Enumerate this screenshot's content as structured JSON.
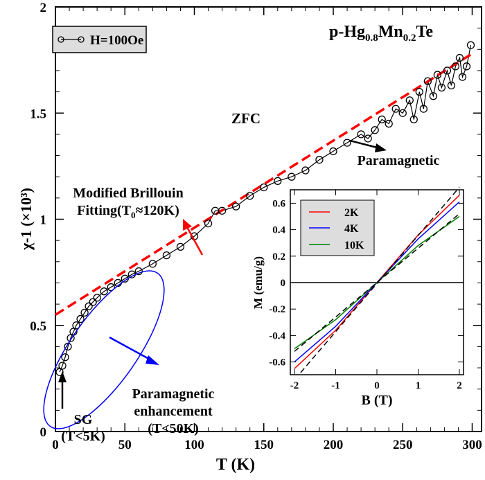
{
  "chart_data": [
    {
      "type": "scatter",
      "title": "p-Hg0.8Mn0.2Te",
      "xlabel": "T (K)",
      "ylabel": "χ-1 (×10³)",
      "xlim": [
        0,
        307
      ],
      "ylim": [
        0,
        2
      ],
      "xticks": [
        "0",
        "50",
        "100",
        "150",
        "200",
        "250",
        "300"
      ],
      "yticks": [
        "0",
        "0.5",
        "1",
        "1.5",
        "2"
      ],
      "legend": {
        "placement": "top-left",
        "entries": [
          "H=100Oe"
        ]
      },
      "series": [
        {
          "name": "H=100Oe",
          "style": "line+open-circles",
          "color": "#000000",
          "x": [
            3,
            5,
            7,
            9,
            11,
            13,
            15,
            18,
            21,
            24,
            27,
            30,
            35,
            40,
            45,
            50,
            55,
            60,
            70,
            80,
            90,
            100,
            110,
            115,
            120,
            130,
            140,
            150,
            160,
            170,
            180,
            190,
            200,
            210,
            220,
            225,
            230,
            235,
            240,
            245,
            250,
            255,
            258,
            262,
            265,
            268,
            272,
            275,
            278,
            282,
            285,
            288,
            291,
            293,
            296,
            299
          ],
          "y": [
            0.28,
            0.31,
            0.35,
            0.4,
            0.44,
            0.47,
            0.5,
            0.53,
            0.56,
            0.59,
            0.61,
            0.63,
            0.66,
            0.68,
            0.7,
            0.72,
            0.74,
            0.755,
            0.79,
            0.83,
            0.87,
            0.92,
            0.98,
            1.04,
            1.04,
            1.06,
            1.11,
            1.15,
            1.18,
            1.2,
            1.23,
            1.28,
            1.32,
            1.36,
            1.4,
            1.38,
            1.42,
            1.47,
            1.45,
            1.52,
            1.5,
            1.56,
            1.47,
            1.6,
            1.52,
            1.65,
            1.58,
            1.68,
            1.62,
            1.7,
            1.63,
            1.72,
            1.76,
            1.67,
            1.72,
            1.82
          ]
        },
        {
          "style": "dashed",
          "color": "#ff0000",
          "x": [
            0,
            300
          ],
          "y": [
            0.55,
            1.78
          ]
        }
      ],
      "annotations": {
        "zfc": "ZFC",
        "paramagnetic": "Paramagnetic",
        "fit1": "Modified Brillouin",
        "fit2": "Fitting(T",
        "fit_sub": "0",
        "fit3": "≈120K)",
        "pe1": "Paramagnetic",
        "pe2": "enhancement",
        "pe3": "(T<50K)",
        "sg1": "SG",
        "sg2": "(T<5K)"
      },
      "title_parts": {
        "a": "p-Hg",
        "b": "0.8",
        "c": "Mn",
        "d": "0.2",
        "e": "Te"
      }
    },
    {
      "type": "line",
      "xlabel": "B (T)",
      "ylabel": "M (emu/g)",
      "xlim": [
        -2.1,
        2.1
      ],
      "ylim": [
        -0.7,
        0.7
      ],
      "xticks": [
        "-2",
        "-1",
        "0",
        "1",
        "2"
      ],
      "yticks": [
        "-0.6",
        "-0.4",
        "-0.2",
        "0",
        "0.2",
        "0.4",
        "0.6"
      ],
      "legend": {
        "placement": "top-left"
      },
      "series": [
        {
          "name": "2K",
          "color": "#ff0000",
          "x": [
            -2,
            -1,
            0,
            1,
            2
          ],
          "y": [
            -0.65,
            -0.36,
            0,
            0.36,
            0.66
          ]
        },
        {
          "name": "4K",
          "color": "#0000ff",
          "x": [
            -2,
            -1,
            0,
            1,
            2
          ],
          "y": [
            -0.6,
            -0.33,
            0,
            0.33,
            0.61
          ]
        },
        {
          "name": "10K",
          "color": "#008000",
          "x": [
            -2,
            -1,
            0,
            1,
            2
          ],
          "y": [
            -0.5,
            -0.28,
            0,
            0.28,
            0.5
          ]
        }
      ],
      "fits": [
        {
          "style": "dashed",
          "color": "#000000",
          "x": [
            -1.85,
            2
          ],
          "y": [
            -0.68,
            0.72
          ]
        },
        {
          "style": "dashed",
          "color": "#000000",
          "x": [
            -2,
            2
          ],
          "y": [
            -0.52,
            0.52
          ]
        }
      ]
    }
  ]
}
